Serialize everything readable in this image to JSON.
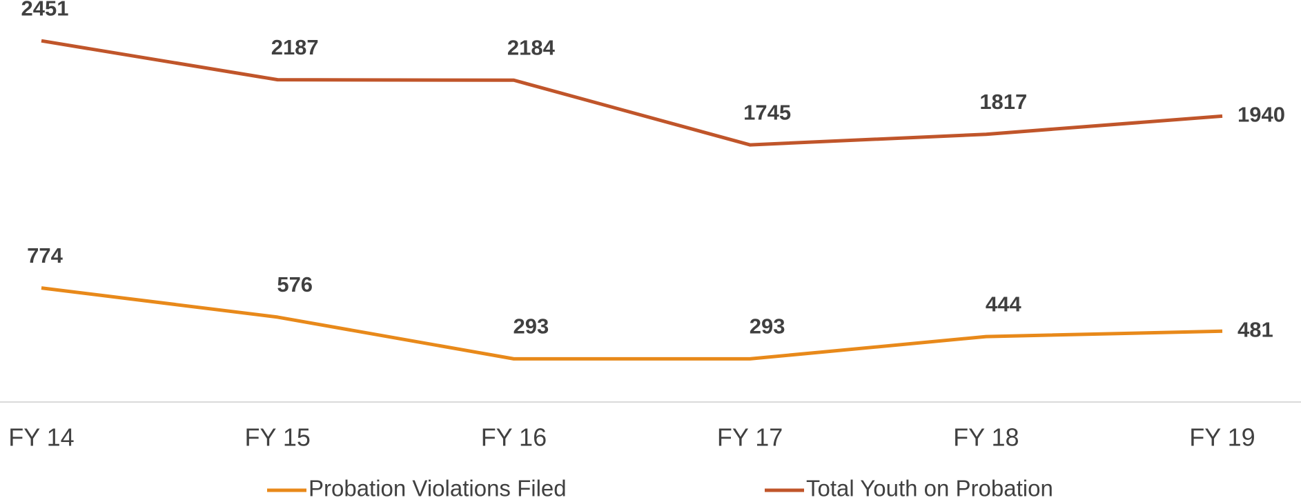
{
  "chart_data": {
    "type": "line",
    "categories": [
      "FY 14",
      "FY 15",
      "FY 16",
      "FY 17",
      "FY 18",
      "FY 19"
    ],
    "series": [
      {
        "name": "Probation Violations Filed",
        "color": "#e8891a",
        "values": [
          774,
          576,
          293,
          293,
          444,
          481
        ]
      },
      {
        "name": "Total Youth on Probation",
        "color": "#c0552a",
        "values": [
          2451,
          2187,
          2184,
          1745,
          1817,
          1940
        ]
      }
    ],
    "ylim": [
      0,
      2700
    ],
    "grid": false
  }
}
